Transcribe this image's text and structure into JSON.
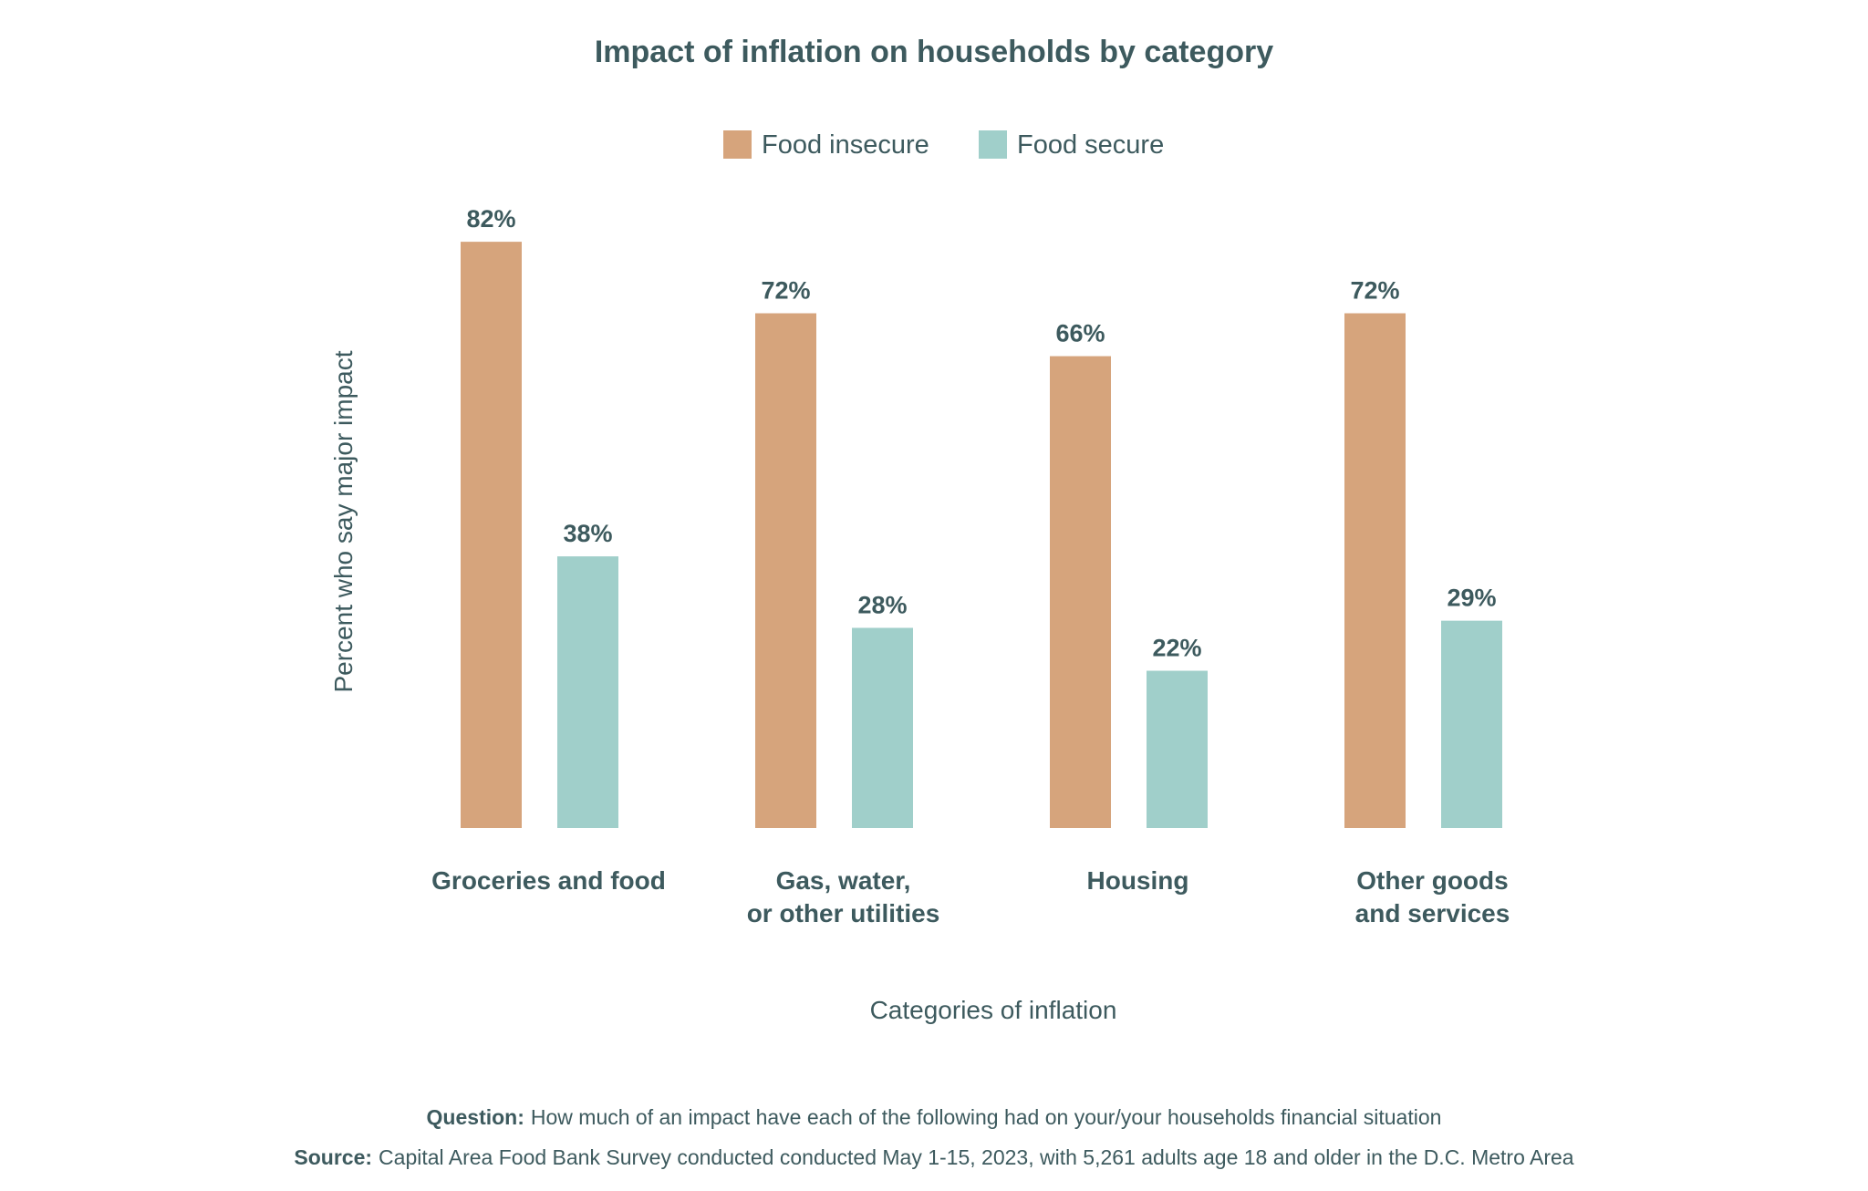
{
  "chart_data": {
    "type": "bar",
    "title": "Impact of inflation on households by category",
    "xlabel": "Categories of inflation",
    "ylabel": "Percent who say major impact",
    "ylim": [
      0,
      100
    ],
    "grid": false,
    "legend_position": "top-center",
    "categories": [
      [
        "Groceries and food"
      ],
      [
        "Gas, water,",
        "or other utilities"
      ],
      [
        "Housing"
      ],
      [
        "Other goods",
        "and services"
      ]
    ],
    "series": [
      {
        "name": "Food insecure",
        "color": "#d6a47c",
        "values": [
          82,
          72,
          66,
          72
        ],
        "labels": [
          "82%",
          "72%",
          "66%",
          "72%"
        ]
      },
      {
        "name": "Food secure",
        "color": "#a0cfca",
        "values": [
          38,
          28,
          22,
          29
        ],
        "labels": [
          "38%",
          "28%",
          "22%",
          "29%"
        ]
      }
    ]
  },
  "footer": {
    "question_label": "Question:",
    "question_text": "How much of an impact have each of the following had on your/your households financial situation",
    "source_label": "Source:",
    "source_text": "Capital Area Food Bank Survey conducted conducted May 1-15, 2023, with 5,261 adults age 18 and older in the D.C. Metro Area"
  }
}
